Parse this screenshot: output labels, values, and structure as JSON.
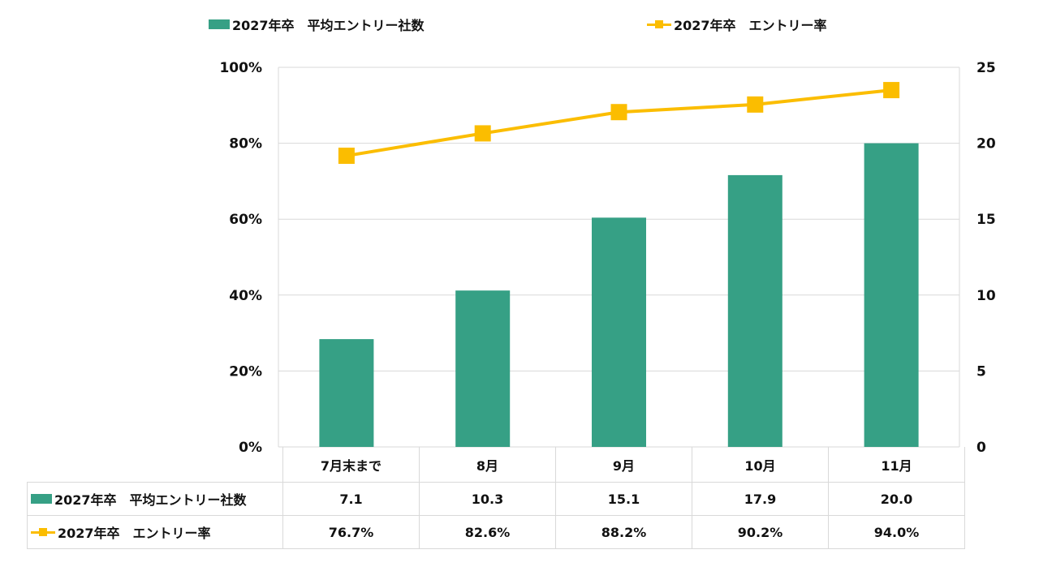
{
  "legend": {
    "bar_label": "2027年卒　平均エントリー社数",
    "line_label": "2027年卒　エントリー率"
  },
  "colors": {
    "bar": "#36a085",
    "line": "#fbbd00",
    "grid": "#d9d9d9",
    "text": "#111111"
  },
  "chart_data": {
    "type": "bar+line",
    "categories": [
      "7月末まで",
      "8月",
      "9月",
      "10月",
      "11月"
    ],
    "series": [
      {
        "name": "2027年卒　平均エントリー社数",
        "type": "bar",
        "axis": "right",
        "values": [
          7.1,
          10.3,
          15.1,
          17.9,
          20.0
        ]
      },
      {
        "name": "2027年卒　エントリー率",
        "type": "line",
        "axis": "left",
        "values": [
          76.7,
          82.6,
          88.2,
          90.2,
          94.0
        ]
      }
    ],
    "left_axis": {
      "min": 0,
      "max": 100,
      "ticks": [
        "0%",
        "20%",
        "40%",
        "60%",
        "80%",
        "100%"
      ]
    },
    "right_axis": {
      "min": 0,
      "max": 25,
      "ticks": [
        "0",
        "5",
        "10",
        "15",
        "20",
        "25"
      ]
    },
    "grid": true,
    "legend_position": "top",
    "data_table": {
      "rows": [
        {
          "label": "2027年卒　平均エントリー社数",
          "cells": [
            "7.1",
            "10.3",
            "15.1",
            "17.9",
            "20.0"
          ]
        },
        {
          "label": "2027年卒　エントリー率",
          "cells": [
            "76.7%",
            "82.6%",
            "88.2%",
            "90.2%",
            "94.0%"
          ]
        }
      ]
    }
  }
}
